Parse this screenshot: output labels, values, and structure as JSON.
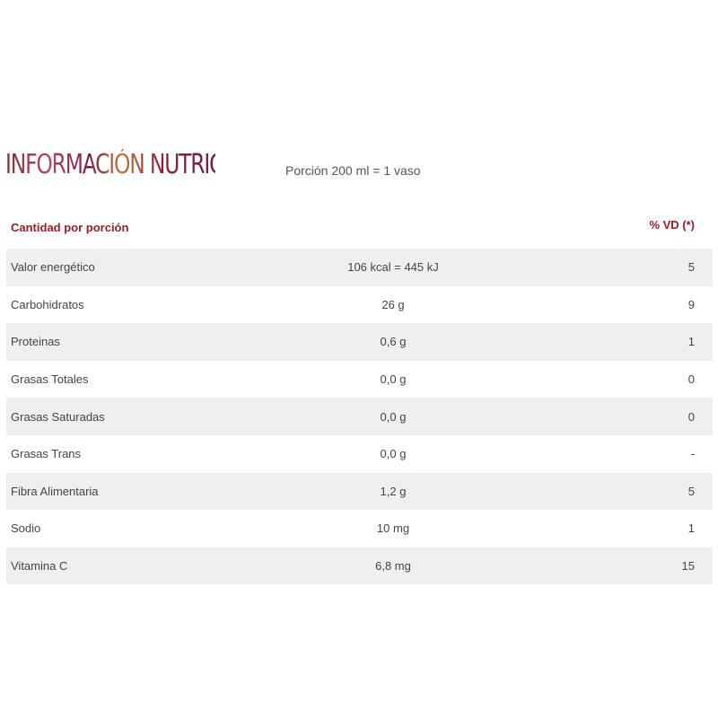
{
  "title": "INFORMACIÓN NUTRICIONAL",
  "portion": "Porción 200 ml = 1 vaso",
  "header": {
    "amount": "Cantidad por porción",
    "vd": "% VD (*)"
  },
  "colors": {
    "header": "#9b1c25",
    "row_shade": "#efefef"
  },
  "rows": [
    {
      "name": "Valor energético",
      "value": "106 kcal = 445 kJ",
      "vd": "5"
    },
    {
      "name": "Carbohidratos",
      "value": "26 g",
      "vd": "9"
    },
    {
      "name": "Proteinas",
      "value": "0,6 g",
      "vd": "1"
    },
    {
      "name": "Grasas Totales",
      "value": "0,0 g",
      "vd": "0"
    },
    {
      "name": "Grasas Saturadas",
      "value": "0,0 g",
      "vd": "0"
    },
    {
      "name": "Grasas Trans",
      "value": "0,0 g",
      "vd": "-"
    },
    {
      "name": "Fibra Alimentaria",
      "value": "1,2 g",
      "vd": "5"
    },
    {
      "name": "Sodio",
      "value": "10 mg",
      "vd": "1"
    },
    {
      "name": "Vitamina C",
      "value": "6,8 mg",
      "vd": "15"
    }
  ]
}
